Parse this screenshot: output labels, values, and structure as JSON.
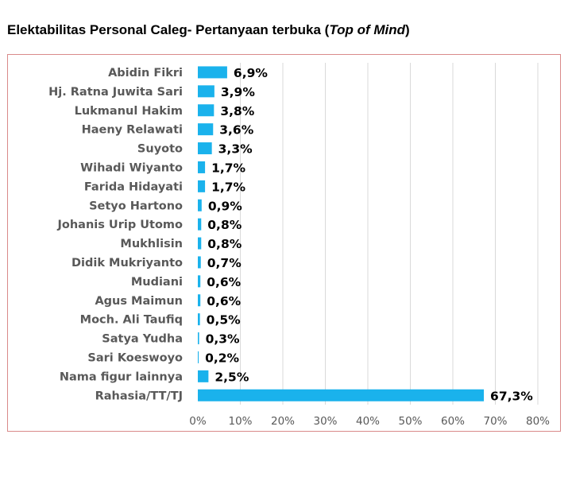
{
  "title": {
    "main": "Elektabilitas Personal Caleg- Pertanyaan terbuka (",
    "italic": "Top of Mind",
    "close": ")"
  },
  "colors": {
    "bar": "#1ab2ec",
    "grid": "#d9d9d9",
    "frame": "#d98a8a"
  },
  "chart_data": {
    "type": "bar",
    "orientation": "horizontal",
    "title": "Elektabilitas Personal Caleg- Pertanyaan terbuka (Top of Mind)",
    "categories": [
      "Abidin Fikri",
      "Hj. Ratna Juwita Sari",
      "Lukmanul Hakim",
      "Haeny Relawati",
      "Suyoto",
      "Wihadi Wiyanto",
      "Farida Hidayati",
      "Setyo Hartono",
      "Johanis Urip Utomo",
      "Mukhlisin",
      "Didik Mukriyanto",
      "Mudiani",
      "Agus Maimun",
      "Moch. Ali Taufiq",
      "Satya Yudha",
      "Sari Koeswoyo",
      "Nama figur lainnya",
      "Rahasia/TT/TJ"
    ],
    "values": [
      6.9,
      3.9,
      3.8,
      3.6,
      3.3,
      1.7,
      1.7,
      0.9,
      0.8,
      0.8,
      0.7,
      0.6,
      0.6,
      0.5,
      0.3,
      0.2,
      2.5,
      67.3
    ],
    "value_labels": [
      "6,9%",
      "3,9%",
      "3,8%",
      "3,6%",
      "3,3%",
      "1,7%",
      "1,7%",
      "0,9%",
      "0,8%",
      "0,8%",
      "0,7%",
      "0,6%",
      "0,6%",
      "0,5%",
      "0,3%",
      "0,2%",
      "2,5%",
      "67,3%"
    ],
    "xlim": [
      0,
      80
    ],
    "xticks": [
      0,
      10,
      20,
      30,
      40,
      50,
      60,
      70,
      80
    ],
    "xtick_labels": [
      "0%",
      "10%",
      "20%",
      "30%",
      "40%",
      "50%",
      "60%",
      "70%",
      "80%"
    ],
    "grid": true,
    "xlabel": "",
    "ylabel": ""
  }
}
